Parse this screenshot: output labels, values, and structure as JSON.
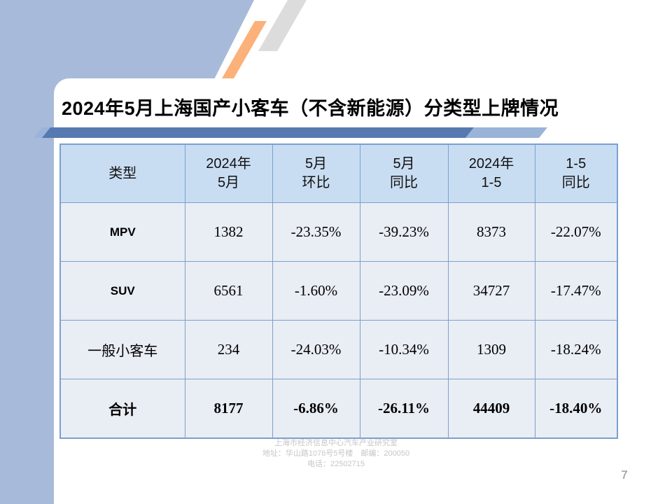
{
  "slide": {
    "title": "2024年5月上海国产小客车（不含新能源）分类型上牌情况",
    "page_number": "7",
    "footer": {
      "line1": "上海市经济信息中心汽车产业研究室",
      "line2": "地址：华山路1076号5号楼　邮编：200050",
      "line3": "电话：22502715"
    }
  },
  "table": {
    "headers": [
      "类型",
      "2024年\n5月",
      "5月\n环比",
      "5月\n同比",
      "2024年\n1-5",
      "1-5\n同比"
    ],
    "rows": [
      {
        "category": "MPV",
        "values": [
          "1382",
          "-23.35%",
          "-39.23%",
          "8373",
          "-22.07%"
        ],
        "bold": false
      },
      {
        "category": "SUV",
        "values": [
          "6561",
          "-1.60%",
          "-23.09%",
          "34727",
          "-17.47%"
        ],
        "bold": false
      },
      {
        "category": "一般小客车",
        "values": [
          "234",
          "-24.03%",
          "-10.34%",
          "1309",
          "-18.24%"
        ],
        "bold": false
      },
      {
        "category": "合计",
        "values": [
          "8177",
          "-6.86%",
          "-26.11%",
          "44409",
          "-18.40%"
        ],
        "bold": true
      }
    ]
  },
  "colors": {
    "bg_blue": "#A8BAD9",
    "bar_dark": "#5679B1",
    "bar_light": "#9AB3D8",
    "orange": "#FBB179",
    "gray_strip": "#DCDCDC",
    "header_bg": "#C9DDF2",
    "cell_bg": "#E9EDF4",
    "border": "#7AA0CE",
    "footer_gray": "#C6C6C6",
    "page_gray": "#8A8A8A"
  }
}
